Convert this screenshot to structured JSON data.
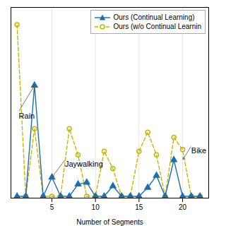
{
  "chart_data": {
    "type": "line",
    "x": [
      1,
      2,
      3,
      4,
      5,
      6,
      7,
      8,
      9,
      10,
      11,
      12,
      13,
      14,
      15,
      16,
      17,
      18,
      19,
      20,
      21,
      22
    ],
    "xlabel": "Number of Segments",
    "series": [
      {
        "name": "Ours (Continual Learning)",
        "color": "#1a6faf",
        "marker": "triangle",
        "line_style": "solid",
        "values": [
          0.01,
          0.01,
          0.65,
          0.01,
          0.12,
          0.01,
          0.01,
          0.08,
          0.09,
          0.01,
          0.01,
          0.07,
          0.01,
          0.01,
          0.01,
          0.06,
          0.13,
          0.01,
          0.22,
          0.01,
          0.01,
          0.01
        ]
      },
      {
        "name": "Ours (w/o Continual Learnin",
        "color": "#c8b400",
        "marker": "open circle",
        "line_style": "dashed",
        "values": [
          1.0,
          0.01,
          0.4,
          0.01,
          0.01,
          0.01,
          0.4,
          0.25,
          0.01,
          0.01,
          0.27,
          0.17,
          0.01,
          0.01,
          0.27,
          0.38,
          0.25,
          0.01,
          0.35,
          0.28,
          0.01,
          0.01
        ]
      }
    ],
    "xlim": [
      0.3,
      23.0
    ],
    "xticks": [
      5,
      10,
      15,
      20
    ],
    "ylim": [
      0,
      1.1
    ],
    "yticks": [],
    "tick_labels": "x",
    "grid": true,
    "legend": "upper right",
    "annotations": [
      {
        "text": "Rain",
        "xy": [
          3,
          0.65
        ],
        "xytext": [
          1.2,
          0.5
        ]
      },
      {
        "text": "Jaywalking",
        "xy": [
          5,
          0.12
        ],
        "xytext": [
          6.5,
          0.22
        ]
      },
      {
        "text": "Bike",
        "xy": [
          20,
          0.22
        ],
        "xytext": [
          21.0,
          0.3
        ]
      }
    ]
  }
}
